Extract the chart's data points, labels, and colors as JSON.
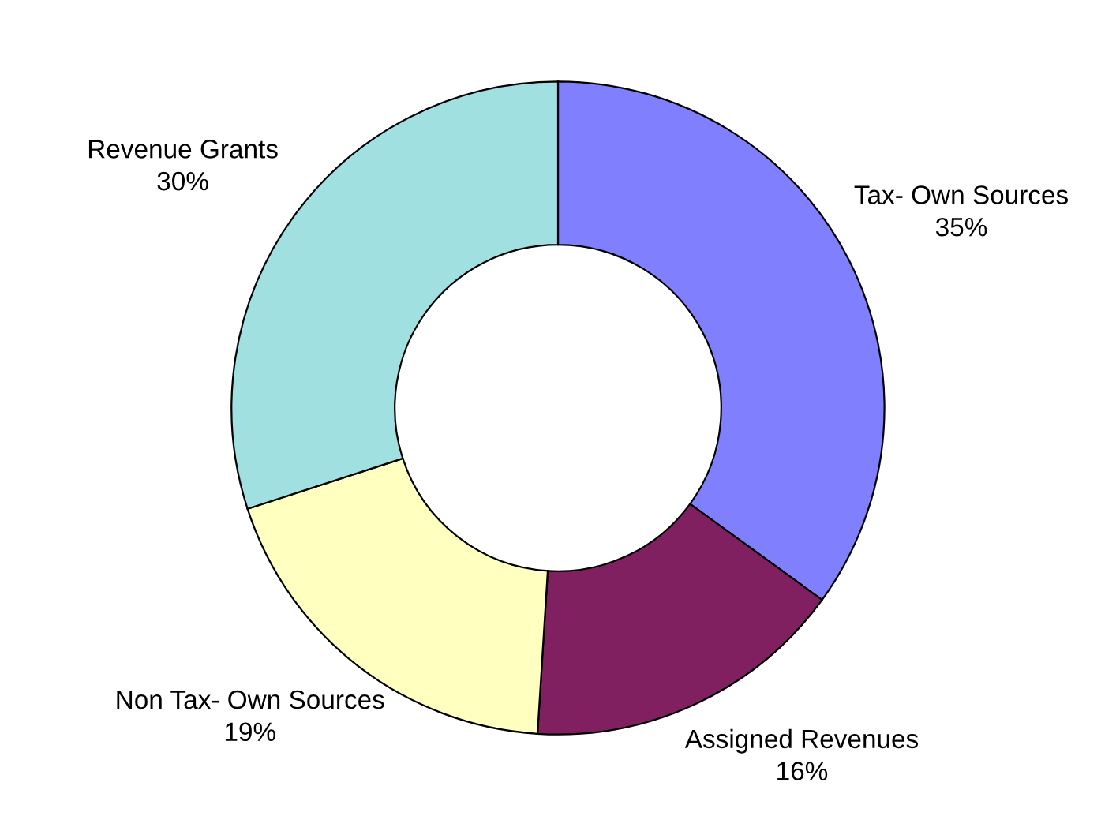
{
  "chart_data": {
    "type": "donut",
    "categories": [
      "Tax- Own Sources",
      "Assigned Revenues",
      "Non Tax- Own Sources",
      "Revenue Grants"
    ],
    "values": [
      35,
      16,
      19,
      30
    ],
    "value_labels": [
      "35%",
      "16%",
      "19%",
      "30%"
    ],
    "colors": [
      "#8080ff",
      "#802060",
      "#ffffc0",
      "#a0e0e0"
    ],
    "legend": false
  }
}
